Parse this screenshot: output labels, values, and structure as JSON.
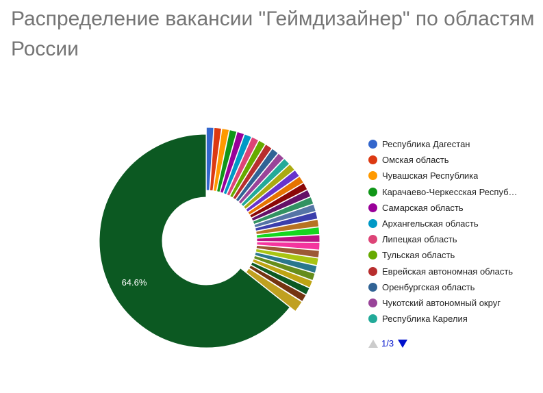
{
  "chart_data": {
    "type": "pie",
    "donut": true,
    "title": "Распределение вакансии \"Геймдизайнер\" по областям России",
    "legend_position": "right",
    "legend_page": "1/3",
    "slice_label": "64.6%",
    "slices": [
      {
        "name": "Республика Дагестан",
        "value": 1.1,
        "color": "#3366cc"
      },
      {
        "name": "Омская область",
        "value": 1.1,
        "color": "#dc3912"
      },
      {
        "name": "Чувашская Республика",
        "value": 1.1,
        "color": "#ff9900"
      },
      {
        "name": "Карачаево-Черкесская Респуб…",
        "value": 1.1,
        "color": "#109618"
      },
      {
        "name": "Самарская область",
        "value": 1.1,
        "color": "#990099"
      },
      {
        "name": "Архангельская область",
        "value": 1.1,
        "color": "#0099c6"
      },
      {
        "name": "Липецкая область",
        "value": 1.1,
        "color": "#dd4477"
      },
      {
        "name": "Тульская область",
        "value": 1.1,
        "color": "#66aa00"
      },
      {
        "name": "Еврейская автономная область",
        "value": 1.1,
        "color": "#b82e2e"
      },
      {
        "name": "Оренбургская область",
        "value": 1.1,
        "color": "#316395"
      },
      {
        "name": "Чукотский автономный округ",
        "value": 1.1,
        "color": "#994499"
      },
      {
        "name": "Республика Карелия",
        "value": 1.1,
        "color": "#22aa99"
      },
      {
        "value": 1.1,
        "color": "#aaaa11"
      },
      {
        "value": 1.1,
        "color": "#6633cc"
      },
      {
        "value": 1.1,
        "color": "#e67300"
      },
      {
        "value": 1.1,
        "color": "#8b0707"
      },
      {
        "value": 1.1,
        "color": "#651067"
      },
      {
        "value": 1.1,
        "color": "#329262"
      },
      {
        "value": 1.1,
        "color": "#5574a6"
      },
      {
        "value": 1.1,
        "color": "#3b3eac"
      },
      {
        "value": 1.1,
        "color": "#b77322"
      },
      {
        "value": 1.1,
        "color": "#16d620"
      },
      {
        "value": 1.1,
        "color": "#b91383"
      },
      {
        "value": 1.1,
        "color": "#f4359e"
      },
      {
        "value": 1.1,
        "color": "#9c5935"
      },
      {
        "value": 1.1,
        "color": "#a9c413"
      },
      {
        "value": 1.1,
        "color": "#2a778d"
      },
      {
        "value": 1.1,
        "color": "#668d1c"
      },
      {
        "value": 1.1,
        "color": "#bea413"
      },
      {
        "value": 1.1,
        "color": "#0c5922"
      },
      {
        "value": 1.1,
        "color": "#743411"
      },
      {
        "value": 1.7,
        "color": "#c0a020"
      },
      {
        "value": 64.6,
        "color": "#0c5922"
      }
    ]
  }
}
